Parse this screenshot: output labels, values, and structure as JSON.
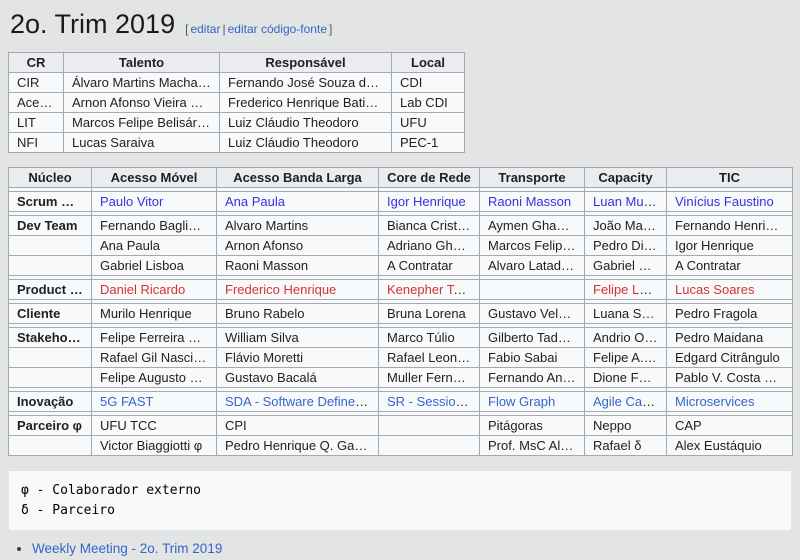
{
  "page": {
    "title": "2o. Trim 2019",
    "edit": {
      "bracket_open": "[",
      "separator": "|",
      "bracket_close": "]",
      "edit_label": "editar",
      "edit_source_label": "editar código-fonte"
    }
  },
  "colors": {
    "page_bg": "#e3e4e4",
    "table_border": "#a2a9b1",
    "header_bg": "#eaecf0",
    "cell_bg": "#f8f9fa",
    "link_blue": "#3333e0",
    "link_red": "#d33333",
    "link_steel": "#3366cc"
  },
  "cr_table": {
    "headers": [
      "CR",
      "Talento",
      "Responsável",
      "Local"
    ],
    "rows": [
      [
        "CIR",
        "Álvaro Martins Machado",
        "Fernando José Souza de Araújo Faro",
        "CDI"
      ],
      [
        "Acesso BL",
        "Arnon Afonso Vieira Carrasco",
        "Frederico Henrique Batista Santos",
        "Lab CDI"
      ],
      [
        "LIT",
        "Marcos Felipe Belisário Costa φ",
        "Luiz Cláudio Theodoro",
        "UFU"
      ],
      [
        "NFI",
        "Lucas Saraiva",
        "Luiz Cláudio Theodoro",
        "PEC-1"
      ]
    ]
  },
  "team_table": {
    "headers": [
      "Núcleo",
      "Acesso Móvel",
      "Acesso Banda Larga",
      "Core de Rede",
      "Transporte",
      "Capacity",
      "TIC"
    ],
    "sections": [
      {
        "label": "Scrum Master",
        "rows": [
          [
            {
              "t": "Paulo Vitor",
              "s": "blue"
            },
            {
              "t": "Ana Paula",
              "s": "blue"
            },
            {
              "t": "Igor Henrique",
              "s": "blue"
            },
            {
              "t": "Raoni Masson",
              "s": "blue"
            },
            {
              "t": "Luan Mundim",
              "s": "blue"
            },
            {
              "t": "Vinícius Faustino",
              "s": "blue"
            }
          ]
        ]
      },
      {
        "label": "Dev Team",
        "rows": [
          [
            {
              "t": "Fernando Bagliano"
            },
            {
              "t": "Alvaro Martins"
            },
            {
              "t": "Bianca Cristina"
            },
            {
              "t": "Aymen Ghannouchi"
            },
            {
              "t": "João Marcos"
            },
            {
              "t": "Fernando Henrique"
            }
          ],
          [
            {
              "t": "Ana Paula"
            },
            {
              "t": "Arnon Afonso"
            },
            {
              "t": "Adriano Ghenov"
            },
            {
              "t": "Marcos Felipe φ"
            },
            {
              "t": "Pedro Diogo"
            },
            {
              "t": "Igor Henrique"
            }
          ],
          [
            {
              "t": "Gabriel Lisboa"
            },
            {
              "t": "Raoni Masson"
            },
            {
              "t": "A Contratar"
            },
            {
              "t": "Alvaro Latado φ"
            },
            {
              "t": "Gabriel Otsuka"
            },
            {
              "t": "A Contratar"
            }
          ]
        ]
      },
      {
        "label": "Product Owner",
        "rows": [
          [
            {
              "t": "Daniel Ricardo",
              "s": "red"
            },
            {
              "t": "Frederico Henrique",
              "s": "red"
            },
            {
              "t": "Kenepher Tavares",
              "s": "red"
            },
            {
              "t": ""
            },
            {
              "t": "Felipe Leite",
              "s": "red"
            },
            {
              "t": "Lucas Soares",
              "s": "red"
            }
          ]
        ]
      },
      {
        "label": "Cliente",
        "rows": [
          [
            {
              "t": "Murilo Henrique"
            },
            {
              "t": "Bruno Rabelo"
            },
            {
              "t": "Bruna Lorena"
            },
            {
              "t": "Gustavo Velasco"
            },
            {
              "t": "Luana Santos"
            },
            {
              "t": "Pedro Fragola"
            }
          ]
        ]
      },
      {
        "label": "Stakeholders",
        "rows": [
          [
            {
              "t": "Felipe Ferreira de Paula"
            },
            {
              "t": "William Silva"
            },
            {
              "t": "Marco Túlio"
            },
            {
              "t": "Gilberto Tadayoshi"
            },
            {
              "t": "Andrio Oliveira"
            },
            {
              "t": "Pedro Maidana"
            }
          ],
          [
            {
              "t": "Rafael Gil Nascimento"
            },
            {
              "t": "Flávio Moretti"
            },
            {
              "t": "Rafael Leonardo"
            },
            {
              "t": "Fabio Sabai"
            },
            {
              "t": "Felipe A. Oliveira"
            },
            {
              "t": "Edgard Citrângulo"
            }
          ],
          [
            {
              "t": "Felipe Augusto Machado"
            },
            {
              "t": "Gustavo Bacalá"
            },
            {
              "t": "Muller Fernandes"
            },
            {
              "t": "Fernando Andrade"
            },
            {
              "t": "Dione Faria"
            },
            {
              "t": "Pablo V. Costa Rabelo"
            }
          ]
        ]
      },
      {
        "label": "Inovação",
        "rows": [
          [
            {
              "t": "5G FAST",
              "s": "steel"
            },
            {
              "t": "SDA - Software Defined Access",
              "s": "steel"
            },
            {
              "t": "SR - Session Router",
              "s": "steel"
            },
            {
              "t": "Flow Graph",
              "s": "steel"
            },
            {
              "t": "Agile Capacity",
              "s": "steel"
            },
            {
              "t": "Microservices",
              "s": "steel"
            }
          ]
        ]
      },
      {
        "label": "Parceiro φ",
        "rows": [
          [
            {
              "t": "UFU TCC"
            },
            {
              "t": "CPI"
            },
            {
              "t": ""
            },
            {
              "t": "Pitágoras"
            },
            {
              "t": "Neppo"
            },
            {
              "t": "CAP"
            }
          ],
          [
            {
              "t": "Victor Biaggiotti φ"
            },
            {
              "t": "Pedro Henrique Q. Garcia"
            },
            {
              "t": ""
            },
            {
              "t": "Prof. MsC Alberto"
            },
            {
              "t": "Rafael δ"
            },
            {
              "t": "Alex Eustáquio"
            }
          ]
        ]
      }
    ]
  },
  "legend": {
    "text": "φ - Colaborador externo\nδ - Parceiro"
  },
  "footer": {
    "weekly_meeting_label": "Weekly Meeting - 2o. Trim 2019"
  }
}
